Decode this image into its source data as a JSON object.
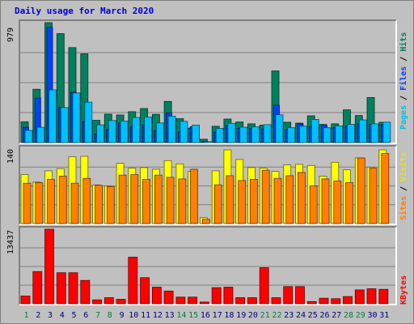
{
  "title": "Daily usage for March 2020",
  "panels": {
    "top": {
      "max_label": "979",
      "legend": [
        {
          "text": "Pages",
          "color": "#00c0e0"
        },
        {
          "text": " / ",
          "color": "#000000"
        },
        {
          "text": "Files",
          "color": "#0040ff"
        },
        {
          "text": " / ",
          "color": "#000000"
        },
        {
          "text": "Hits",
          "color": "#008060"
        }
      ]
    },
    "middle": {
      "max_label": "140",
      "legend": [
        {
          "text": "Sites",
          "color": "#ff8000"
        },
        {
          "text": " / ",
          "color": "#000000"
        },
        {
          "text": "Visits",
          "color": "#e8e800"
        }
      ]
    },
    "bottom": {
      "max_label": "13437",
      "legend": [
        {
          "text": "KBytes",
          "color": "#ff0000"
        }
      ]
    }
  },
  "chart_data": {
    "type": "bar",
    "title": "Daily usage for March 2020",
    "categories": [
      "1",
      "2",
      "3",
      "4",
      "5",
      "6",
      "7",
      "8",
      "9",
      "10",
      "11",
      "12",
      "13",
      "14",
      "15",
      "16",
      "17",
      "18",
      "19",
      "20",
      "21",
      "22",
      "23",
      "24",
      "25",
      "26",
      "27",
      "28",
      "29",
      "30",
      "31"
    ],
    "weekend_days": [
      "1",
      "7",
      "8",
      "14",
      "15",
      "21",
      "22",
      "28",
      "29"
    ],
    "weekend_color": "#008040",
    "weekday_color": "#000080",
    "panels": [
      {
        "name": "top",
        "ylim": [
          0,
          979
        ],
        "series": [
          {
            "name": "Hits",
            "color": "#00805f",
            "values": [
              170,
              435,
              979,
              890,
              775,
              725,
              181,
              232,
              225,
              252,
              278,
              230,
              336,
              195,
              118,
              27,
              133,
              192,
              168,
              153,
              142,
              585,
              166,
              159,
              218,
              148,
              153,
              267,
              221,
              368,
              166
            ]
          },
          {
            "name": "Files",
            "color": "#0040ff",
            "values": [
              125,
              363,
              940,
              287,
              410,
              170,
              70,
              110,
              163,
              129,
              146,
              98,
              243,
              87,
              129,
              10,
              85,
              137,
              117,
              114,
              112,
              305,
              108,
              152,
              130,
              138,
              123,
              134,
              155,
              149,
              145
            ]
          },
          {
            "name": "Pages",
            "color": "#00c0ff",
            "values": [
              100,
              125,
              430,
              285,
              405,
              330,
              145,
              180,
              175,
              205,
              208,
              160,
              215,
              173,
              143,
              7,
              116,
              157,
              126,
              129,
              146,
              227,
              121,
              134,
              189,
              121,
              136,
              148,
              185,
              153,
              167
            ]
          }
        ]
      },
      {
        "name": "middle",
        "ylim": [
          0,
          140
        ],
        "series": [
          {
            "name": "Visits",
            "color": "#ffff00",
            "values": [
              91,
              77,
              98,
              102,
              124,
              125,
              72,
              70,
              112,
              103,
              104,
              101,
              117,
              111,
              97,
              11,
              98,
              137,
              119,
              104,
              103,
              97,
              109,
              110,
              108,
              88,
              114,
              100,
              122,
              105,
              137
            ]
          },
          {
            "name": "Sites",
            "color": "#ff8000",
            "values": [
              75,
              76,
              82,
              88,
              75,
              84,
              71,
              69,
              90,
              91,
              82,
              90,
              86,
              83,
              101,
              8,
              72,
              89,
              80,
              82,
              99,
              84,
              89,
              95,
              70,
              83,
              79,
              76,
              122,
              103,
              130
            ]
          }
        ]
      },
      {
        "name": "bottom",
        "ylim": [
          0,
          13437
        ],
        "series": [
          {
            "name": "KBytes",
            "color": "#ff0000",
            "values": [
              1400,
              5800,
              13437,
              5600,
              5600,
              4200,
              700,
              1100,
              800,
              8400,
              4700,
              3000,
              2300,
              1200,
              1200,
              300,
              2900,
              3000,
              1100,
              1100,
              6500,
              1100,
              3100,
              3100,
              400,
              1000,
              900,
              1300,
              2500,
              2700,
              2600
            ]
          }
        ]
      }
    ]
  }
}
